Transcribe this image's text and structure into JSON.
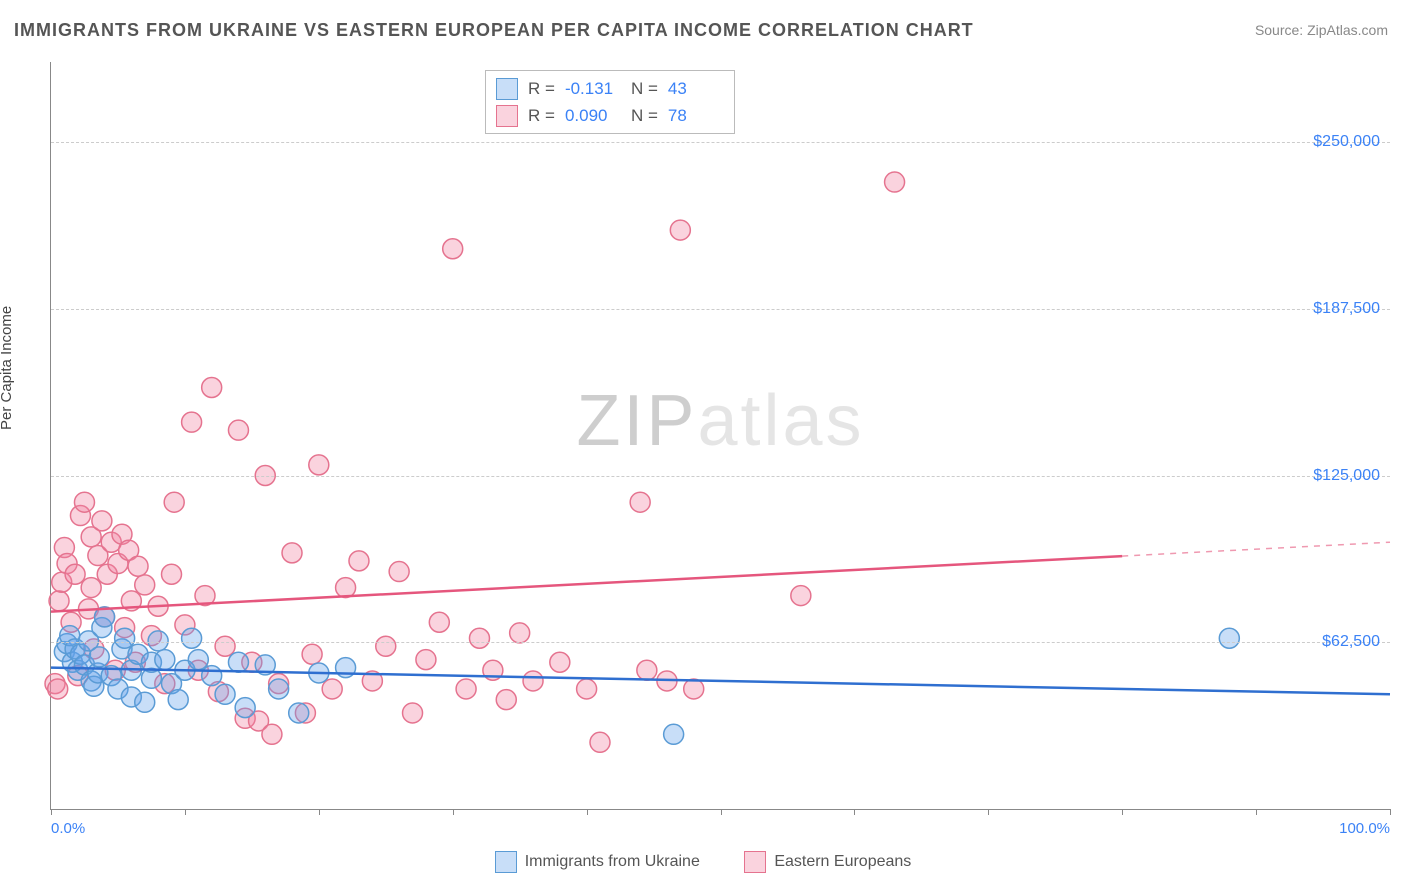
{
  "title": "IMMIGRANTS FROM UKRAINE VS EASTERN EUROPEAN PER CAPITA INCOME CORRELATION CHART",
  "source": "Source: ZipAtlas.com",
  "watermark_z": "ZIP",
  "watermark_rest": "atlas",
  "y_axis_label": "Per Capita Income",
  "chart": {
    "type": "scatter",
    "xlim": [
      0,
      100
    ],
    "ylim": [
      0,
      280000
    ],
    "x_ticks": [
      0,
      10,
      20,
      30,
      40,
      50,
      60,
      70,
      80,
      90,
      100
    ],
    "y_gridlines": [
      62500,
      125000,
      187500,
      250000
    ],
    "y_tick_labels": [
      "$62,500",
      "$125,000",
      "$187,500",
      "$250,000"
    ],
    "x_min_label": "0.0%",
    "x_max_label": "100.0%",
    "background_color": "#ffffff",
    "grid_color": "#cccccc",
    "series_a": {
      "name": "Immigrants from Ukraine",
      "color_fill": "rgba(96,160,235,0.35)",
      "color_stroke": "#5a9bd5",
      "trend_color": "#2f6fd0",
      "trend_width": 2.5,
      "trend_y_start": 53000,
      "trend_y_end": 43000,
      "trend_x_end_solid": 100,
      "r_label": "R =",
      "r_value": "-0.131",
      "n_label": "N =",
      "n_value": "43",
      "marker_radius": 10,
      "points": [
        [
          1.0,
          59000
        ],
        [
          1.2,
          62000
        ],
        [
          1.4,
          65000
        ],
        [
          1.6,
          55000
        ],
        [
          1.8,
          60000
        ],
        [
          2.0,
          52000
        ],
        [
          2.2,
          58000
        ],
        [
          2.5,
          54000
        ],
        [
          2.8,
          63000
        ],
        [
          3.0,
          48000
        ],
        [
          3.2,
          46000
        ],
        [
          3.5,
          51000
        ],
        [
          3.6,
          57000
        ],
        [
          3.8,
          68000
        ],
        [
          4.0,
          72000
        ],
        [
          4.5,
          50000
        ],
        [
          5.0,
          45000
        ],
        [
          5.3,
          60000
        ],
        [
          5.5,
          64000
        ],
        [
          6.0,
          52000
        ],
        [
          6.0,
          42000
        ],
        [
          6.5,
          58000
        ],
        [
          7.0,
          40000
        ],
        [
          7.5,
          49000
        ],
        [
          7.5,
          55000
        ],
        [
          8.0,
          63000
        ],
        [
          8.5,
          56000
        ],
        [
          9.0,
          47000
        ],
        [
          9.5,
          41000
        ],
        [
          10.0,
          52000
        ],
        [
          10.5,
          64000
        ],
        [
          11.0,
          56000
        ],
        [
          12.0,
          50000
        ],
        [
          13.0,
          43000
        ],
        [
          14.0,
          55000
        ],
        [
          14.5,
          38000
        ],
        [
          16.0,
          54000
        ],
        [
          17.0,
          45000
        ],
        [
          18.5,
          36000
        ],
        [
          20.0,
          51000
        ],
        [
          22.0,
          53000
        ],
        [
          46.5,
          28000
        ],
        [
          88.0,
          64000
        ]
      ]
    },
    "series_b": {
      "name": "Eastern Europeans",
      "color_fill": "rgba(240,130,160,0.35)",
      "color_stroke": "#e5738f",
      "trend_color": "#e5567d",
      "trend_width": 2.5,
      "trend_y_start": 74000,
      "trend_y_end": 100000,
      "trend_x_end_solid": 80,
      "r_label": "R =",
      "r_value": "0.090",
      "n_label": "N =",
      "n_value": "78",
      "marker_radius": 10,
      "points": [
        [
          0.3,
          47000
        ],
        [
          0.5,
          45000
        ],
        [
          0.6,
          78000
        ],
        [
          0.8,
          85000
        ],
        [
          1.0,
          98000
        ],
        [
          1.2,
          92000
        ],
        [
          1.5,
          70000
        ],
        [
          1.8,
          88000
        ],
        [
          2.0,
          50000
        ],
        [
          2.2,
          110000
        ],
        [
          2.5,
          115000
        ],
        [
          2.8,
          75000
        ],
        [
          3.0,
          83000
        ],
        [
          3.0,
          102000
        ],
        [
          3.2,
          60000
        ],
        [
          3.5,
          95000
        ],
        [
          3.8,
          108000
        ],
        [
          4.0,
          72000
        ],
        [
          4.2,
          88000
        ],
        [
          4.5,
          100000
        ],
        [
          4.8,
          52000
        ],
        [
          5.0,
          92000
        ],
        [
          5.3,
          103000
        ],
        [
          5.5,
          68000
        ],
        [
          5.8,
          97000
        ],
        [
          6.0,
          78000
        ],
        [
          6.3,
          55000
        ],
        [
          6.5,
          91000
        ],
        [
          7.0,
          84000
        ],
        [
          7.5,
          65000
        ],
        [
          8.0,
          76000
        ],
        [
          8.5,
          47000
        ],
        [
          9.0,
          88000
        ],
        [
          9.2,
          115000
        ],
        [
          10.0,
          69000
        ],
        [
          10.5,
          145000
        ],
        [
          11.0,
          52000
        ],
        [
          11.5,
          80000
        ],
        [
          12.0,
          158000
        ],
        [
          12.5,
          44000
        ],
        [
          13.0,
          61000
        ],
        [
          14.0,
          142000
        ],
        [
          14.5,
          34000
        ],
        [
          15.0,
          55000
        ],
        [
          15.5,
          33000
        ],
        [
          16.0,
          125000
        ],
        [
          16.5,
          28000
        ],
        [
          17.0,
          47000
        ],
        [
          18.0,
          96000
        ],
        [
          19.0,
          36000
        ],
        [
          19.5,
          58000
        ],
        [
          20.0,
          129000
        ],
        [
          21.0,
          45000
        ],
        [
          22.0,
          83000
        ],
        [
          23.0,
          93000
        ],
        [
          24.0,
          48000
        ],
        [
          25.0,
          61000
        ],
        [
          26.0,
          89000
        ],
        [
          27.0,
          36000
        ],
        [
          28.0,
          56000
        ],
        [
          29.0,
          70000
        ],
        [
          30.0,
          210000
        ],
        [
          31.0,
          45000
        ],
        [
          32.0,
          64000
        ],
        [
          33.0,
          52000
        ],
        [
          34.0,
          41000
        ],
        [
          35.0,
          66000
        ],
        [
          36.0,
          48000
        ],
        [
          38.0,
          55000
        ],
        [
          40.0,
          45000
        ],
        [
          41.0,
          25000
        ],
        [
          44.0,
          115000
        ],
        [
          44.5,
          52000
        ],
        [
          46.0,
          48000
        ],
        [
          47.0,
          217000
        ],
        [
          48.0,
          45000
        ],
        [
          56.0,
          80000
        ],
        [
          63.0,
          235000
        ]
      ]
    }
  },
  "bottom_legend": {
    "item_a": "Immigrants from Ukraine",
    "item_b": "Eastern Europeans"
  }
}
